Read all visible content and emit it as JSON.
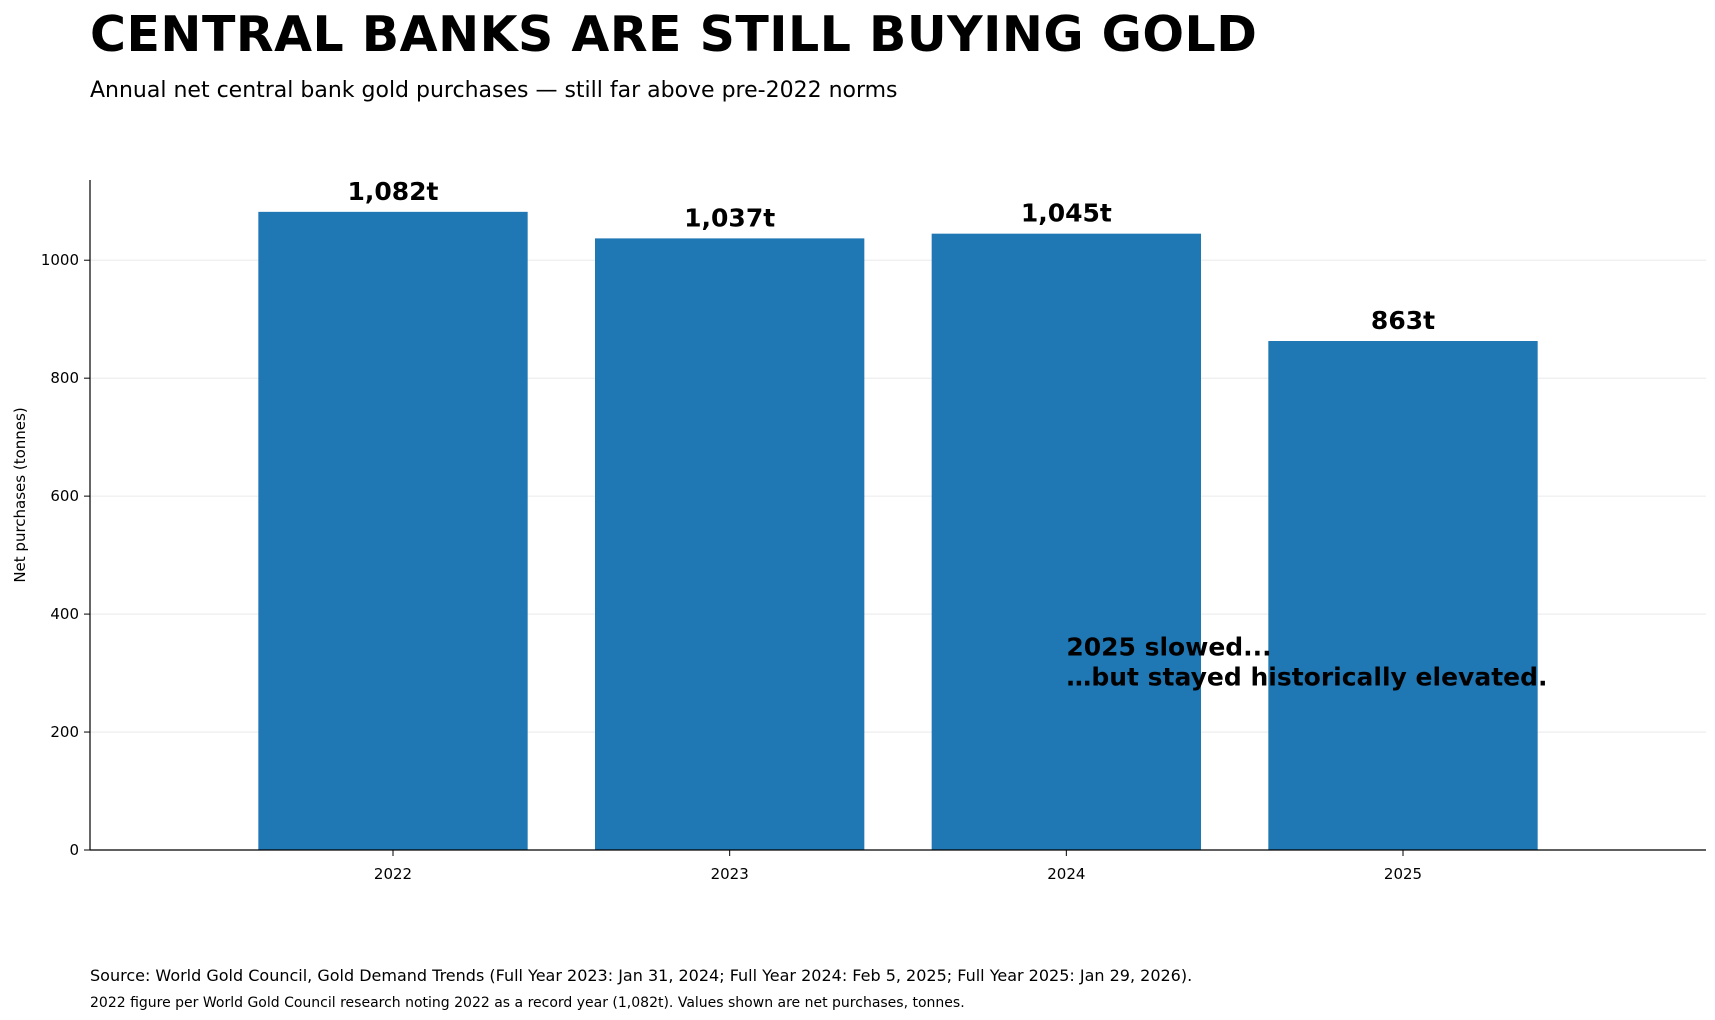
{
  "header": {
    "title": "CENTRAL BANKS ARE STILL BUYING GOLD",
    "subtitle": "Annual net central bank gold purchases — still far above pre-2022 norms"
  },
  "chart_data": {
    "type": "bar",
    "categories": [
      "2022",
      "2023",
      "2024",
      "2025"
    ],
    "values": [
      1082,
      1037,
      1045,
      863
    ],
    "data_labels": [
      "1,082t",
      "1,037t",
      "1,045t",
      "863t"
    ],
    "ylabel": "Net purchases (tonnes)",
    "xlabel": "",
    "ylim": [
      0,
      1136
    ],
    "yticks": [
      0,
      200,
      400,
      600,
      800,
      1000
    ],
    "grid": "horizontal",
    "bar_color": "#1f77b4",
    "annotation": {
      "lines": [
        "2025 slowed...",
        "…but stayed historically elevated."
      ],
      "anchor_category": "2024",
      "anchor_value": 330
    }
  },
  "footer": {
    "source": "Source: World Gold Council, Gold Demand Trends (Full Year 2023: Jan 31, 2024; Full Year 2024: Feb 5, 2025; Full Year 2025: Jan 29, 2026).",
    "note": "2022 figure per World Gold Council research noting 2022 as a record year (1,082t). Values shown are net purchases, tonnes."
  }
}
